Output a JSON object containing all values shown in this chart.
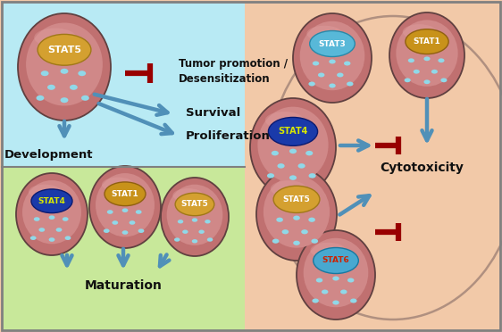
{
  "bg_light_blue": "#b8eaf4",
  "bg_light_green": "#c8e89a",
  "bg_peach": "#f2c9a8",
  "cell_body_outer": "#c07070",
  "cell_body_inner": "#d08888",
  "cell_highlight": "#e0a0a0",
  "dot_color": "#90d8e8",
  "stat5_nuc_color": "#d4a030",
  "stat5_nuc_border": "#a07818",
  "stat4_nuc_color": "#1a3aaa",
  "stat4_nuc_border": "#0a1a70",
  "stat3_nuc_color": "#58b8d8",
  "stat3_nuc_border": "#2888a8",
  "stat1_nuc_color": "#c8921a",
  "stat1_nuc_border": "#906010",
  "stat6_nuc_color": "#48a8d0",
  "stat6_nuc_border": "#1878a0",
  "arrow_blue": "#5090b8",
  "arrow_red": "#990000",
  "text_black": "#111111",
  "text_white": "#ffffff",
  "text_yellow": "#d8e800",
  "text_red": "#cc2200",
  "border_color": "#808080",
  "cells_tl": {
    "label": "STAT5",
    "nuc": "stat5",
    "label_color": "white"
  },
  "cells_bl": [
    {
      "label": "STAT4",
      "nuc": "stat4",
      "label_color": "yellow"
    },
    {
      "label": "STAT1",
      "nuc": "stat1",
      "label_color": "white"
    },
    {
      "label": "STAT5",
      "nuc": "stat5",
      "label_color": "white"
    }
  ],
  "cells_right": [
    {
      "label": "STAT3",
      "nuc": "stat3",
      "label_color": "white"
    },
    {
      "label": "STAT1",
      "nuc": "stat1",
      "label_color": "white"
    },
    {
      "label": "STAT4",
      "nuc": "stat4",
      "label_color": "yellow"
    },
    {
      "label": "STAT5",
      "nuc": "stat5",
      "label_color": "white"
    },
    {
      "label": "STAT6",
      "nuc": "stat6",
      "label_color": "red"
    }
  ]
}
